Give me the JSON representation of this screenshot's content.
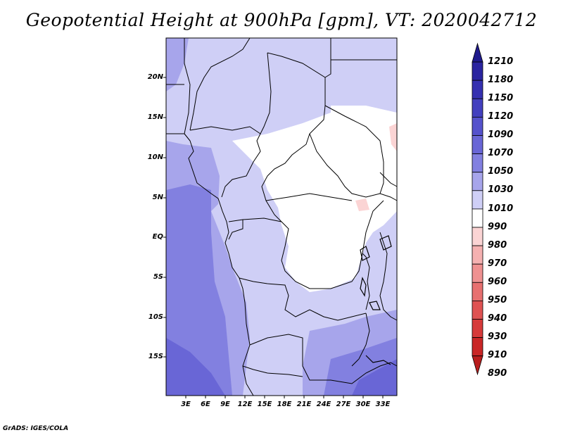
{
  "title": "Geopotential Height at 900hPa [gpm], VT: 2020042712",
  "credit": "GrADS: IGES/COLA",
  "map": {
    "variable": "Geopotential Height",
    "level": "900hPa",
    "units": "gpm",
    "valid_time": "2020042712",
    "lat_labels": [
      "20N",
      "15N",
      "10N",
      "5N",
      "EQ",
      "5S",
      "10S",
      "15S"
    ],
    "lon_labels": [
      "3E",
      "6E",
      "9E",
      "12E",
      "15E",
      "18E",
      "21E",
      "24E",
      "27E",
      "30E",
      "33E"
    ]
  },
  "colorbar": {
    "levels": [
      "1210",
      "1180",
      "1150",
      "1120",
      "1090",
      "1070",
      "1050",
      "1030",
      "1010",
      "990",
      "980",
      "970",
      "960",
      "950",
      "940",
      "930",
      "910",
      "890"
    ],
    "colors": [
      "#1f1a8c",
      "#2a24a0",
      "#3530b0",
      "#4340bf",
      "#5552cc",
      "#6966d6",
      "#8280e0",
      "#a7a5eb",
      "#cfcff6",
      "#ffffff",
      "#fbd4d4",
      "#f5b1b1",
      "#ef9191",
      "#e77070",
      "#df5252",
      "#d63a3a",
      "#c92626",
      "#b81d1d"
    ]
  }
}
